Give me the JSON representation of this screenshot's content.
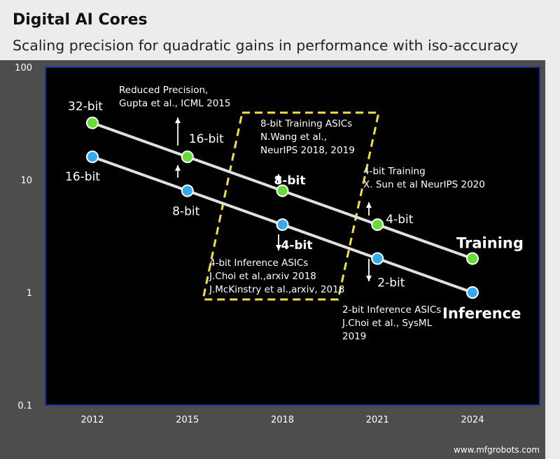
{
  "header": {
    "title": "Digital AI Cores",
    "subtitle": "Scaling precision for quadratic gains in performance with iso-accuracy"
  },
  "chart_data": {
    "type": "line",
    "title": "Digital AI Cores",
    "subtitle": "Scaling precision for quadratic gains in performance with iso-accuracy",
    "x": [
      2012,
      2015,
      2018,
      2021,
      2024
    ],
    "xticks": [
      "2012",
      "2015",
      "2018",
      "2021",
      "2024"
    ],
    "yscale": "log",
    "ylim": [
      0.1,
      100
    ],
    "yticks": [
      "0.1",
      "1",
      "10",
      "100"
    ],
    "grid": false,
    "series": [
      {
        "name": "Training",
        "color": "#66dd33",
        "values": [
          32,
          16,
          8,
          4,
          2
        ],
        "point_labels": [
          "32-bit",
          "16-bit",
          "8-bit",
          "4-bit",
          ""
        ]
      },
      {
        "name": "Inference",
        "color": "#33aaee",
        "values": [
          16,
          8,
          4,
          2,
          1
        ],
        "point_labels": [
          "16-bit",
          "8-bit",
          "4-bit",
          "2-bit",
          ""
        ]
      }
    ],
    "annotations": [
      {
        "id": "reduced-precision-note",
        "lines": [
          "Reduced Precision,",
          "Gupta et al., ICML 2015"
        ]
      },
      {
        "id": "training-8bit-note",
        "lines": [
          "8-bit Training ASICs",
          "N.Wang et al.,",
          "NeurIPS 2018, 2019"
        ]
      },
      {
        "id": "training-4bit-note",
        "lines": [
          "4-bit Training",
          "X. Sun et al NeurIPS 2020"
        ]
      },
      {
        "id": "inference-4bit-note",
        "lines": [
          "4-bit Inference ASICs",
          "J.Choi et al.,arxiv 2018",
          "J.McKinstry et al.,arxiv, 2018"
        ]
      },
      {
        "id": "inference-2bit-note",
        "lines": [
          "2-bit Inference ASICs",
          "J.Choi et al., SysML",
          "2019"
        ]
      }
    ],
    "highlight_color": "#f0e040"
  },
  "watermark": "www.mfgrobots.com"
}
